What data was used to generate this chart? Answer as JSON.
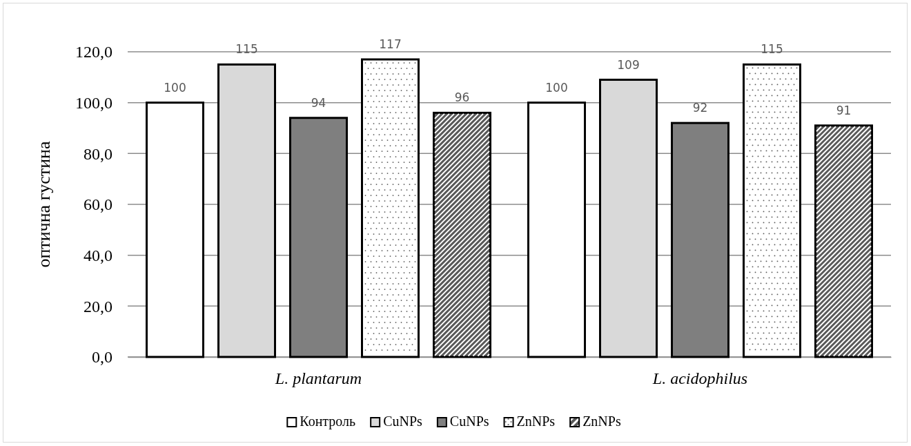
{
  "chart_data": {
    "type": "bar",
    "ylabel": "оптична густина",
    "categories": [
      "L. plantarum",
      "L. acidophilus"
    ],
    "series": [
      {
        "name": "Контроль",
        "color": "#ffffff",
        "values": [
          100,
          100
        ]
      },
      {
        "name": "CuNPs",
        "color": "#d9d9d9",
        "values": [
          115,
          109
        ]
      },
      {
        "name": "CuNPs",
        "color": "#7f7f7f",
        "values": [
          94,
          92
        ]
      },
      {
        "name": "ZnNPs",
        "color": "#ffffff",
        "values": [
          117,
          115
        ]
      },
      {
        "name": "ZnNPs",
        "color": "#595959",
        "values": [
          96,
          91
        ]
      }
    ],
    "ylim": [
      0,
      120
    ],
    "yticks": [
      {
        "value": 0,
        "label": "0,0"
      },
      {
        "value": 20,
        "label": "20,0"
      },
      {
        "value": 40,
        "label": "40,0"
      },
      {
        "value": 60,
        "label": "60,0"
      },
      {
        "value": 80,
        "label": "80,0"
      },
      {
        "value": 100,
        "label": "100,0"
      },
      {
        "value": 120,
        "label": "120,0"
      }
    ],
    "grid": "y",
    "legend": "bottom",
    "data_labels": true
  }
}
